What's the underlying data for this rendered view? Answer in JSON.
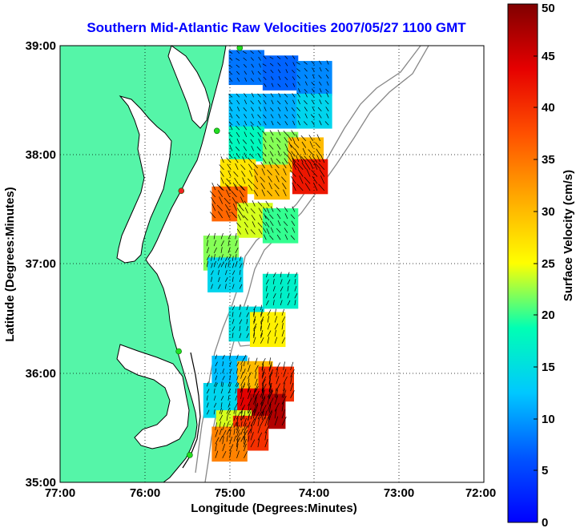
{
  "chart_data": {
    "type": "heatmap",
    "title": "Southern Mid-Atlantic Raw Velocities 2007/05/27 1100 GMT",
    "xlabel": "Longitude (Degrees:Minutes)",
    "ylabel": "Latitude (Degrees:Minutes)",
    "x_ticks": [
      "77:00",
      "76:00",
      "75:00",
      "74:00",
      "73:00",
      "72:00"
    ],
    "y_ticks": [
      "39:00",
      "38:00",
      "37:00",
      "36:00",
      "35:00"
    ],
    "xlim": [
      -77,
      -72
    ],
    "ylim": [
      35,
      39
    ],
    "grid": true,
    "colorbar": {
      "label": "Surface Velocity (cm/s)",
      "range": [
        0,
        50
      ],
      "ticks": [
        "0",
        "5",
        "10",
        "15",
        "20",
        "25",
        "30",
        "35",
        "40",
        "45",
        "50"
      ],
      "colormap": "jet"
    },
    "land_color": "#55f5a8",
    "coast_color": "#000000",
    "bathymetry_color": "#888888",
    "stations": [
      {
        "lon": -74.88,
        "lat": 38.98,
        "color": "#22dd22"
      },
      {
        "lon": -75.15,
        "lat": 38.22,
        "color": "#22dd22"
      },
      {
        "lon": -75.57,
        "lat": 37.67,
        "color": "#ee2222"
      },
      {
        "lon": -75.6,
        "lat": 36.2,
        "color": "#22dd22"
      },
      {
        "lon": -75.47,
        "lat": 35.25,
        "color": "#22dd22"
      }
    ],
    "velocity_patches": [
      {
        "lon": -74.8,
        "lat": 38.8,
        "speed": 8
      },
      {
        "lon": -74.4,
        "lat": 38.75,
        "speed": 7
      },
      {
        "lon": -74.0,
        "lat": 38.7,
        "speed": 9
      },
      {
        "lon": -74.8,
        "lat": 38.4,
        "speed": 12
      },
      {
        "lon": -74.4,
        "lat": 38.4,
        "speed": 11
      },
      {
        "lon": -74.0,
        "lat": 38.4,
        "speed": 14
      },
      {
        "lon": -74.8,
        "lat": 38.1,
        "speed": 18
      },
      {
        "lon": -74.4,
        "lat": 38.05,
        "speed": 22
      },
      {
        "lon": -74.1,
        "lat": 38.0,
        "speed": 30
      },
      {
        "lon": -74.9,
        "lat": 37.8,
        "speed": 27
      },
      {
        "lon": -74.5,
        "lat": 37.75,
        "speed": 30
      },
      {
        "lon": -74.05,
        "lat": 37.8,
        "speed": 42
      },
      {
        "lon": -75.0,
        "lat": 37.55,
        "speed": 36
      },
      {
        "lon": -74.7,
        "lat": 37.4,
        "speed": 24
      },
      {
        "lon": -74.4,
        "lat": 37.35,
        "speed": 20
      },
      {
        "lon": -75.1,
        "lat": 37.1,
        "speed": 22
      },
      {
        "lon": -75.05,
        "lat": 36.9,
        "speed": 14
      },
      {
        "lon": -74.4,
        "lat": 36.75,
        "speed": 17
      },
      {
        "lon": -74.8,
        "lat": 36.45,
        "speed": 15
      },
      {
        "lon": -74.55,
        "lat": 36.4,
        "speed": 26
      },
      {
        "lon": -75.0,
        "lat": 36.0,
        "speed": 12
      },
      {
        "lon": -74.7,
        "lat": 35.95,
        "speed": 30
      },
      {
        "lon": -74.45,
        "lat": 35.9,
        "speed": 40
      },
      {
        "lon": -75.1,
        "lat": 35.75,
        "speed": 14
      },
      {
        "lon": -74.7,
        "lat": 35.7,
        "speed": 44
      },
      {
        "lon": -74.55,
        "lat": 35.65,
        "speed": 47
      },
      {
        "lon": -74.95,
        "lat": 35.5,
        "speed": 24
      },
      {
        "lon": -74.75,
        "lat": 35.45,
        "speed": 40
      },
      {
        "lon": -75.0,
        "lat": 35.35,
        "speed": 34
      }
    ]
  }
}
